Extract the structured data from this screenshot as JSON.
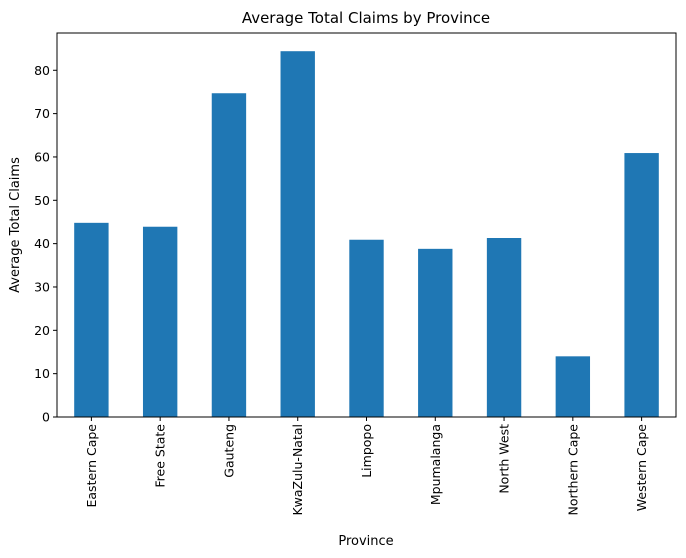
{
  "chart_data": {
    "type": "bar",
    "title": "Average Total Claims by Province",
    "xlabel": "Province",
    "ylabel": "Average Total Claims",
    "categories": [
      "Eastern Cape",
      "Free State",
      "Gauteng",
      "KwaZulu-Natal",
      "Limpopo",
      "Mpumalanga",
      "North West",
      "Northern Cape",
      "Western Cape"
    ],
    "values": [
      44.8,
      43.9,
      74.7,
      84.4,
      40.9,
      38.8,
      41.3,
      14.0,
      60.9
    ],
    "yticks": [
      0,
      10,
      20,
      30,
      40,
      50,
      60,
      70,
      80
    ],
    "ylim": [
      0,
      88.6
    ],
    "grid": false,
    "bar_color": "#1f77b4"
  }
}
